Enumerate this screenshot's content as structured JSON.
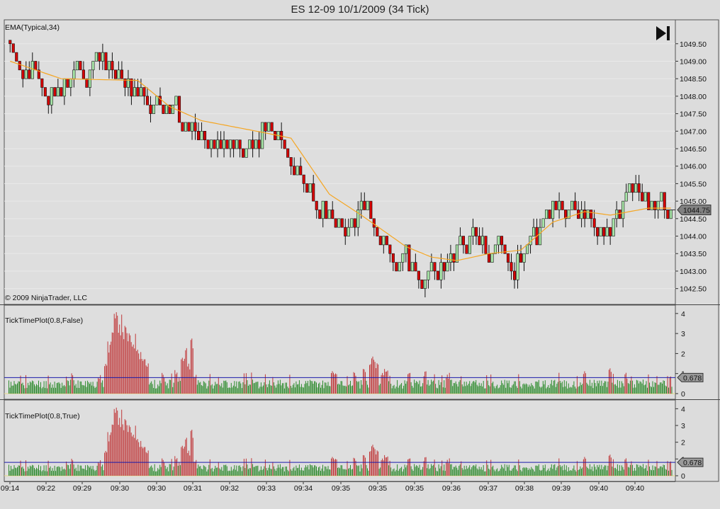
{
  "window": {
    "title": "ES 12-09  10/1/2009 (34 Tick)"
  },
  "colors": {
    "up": "#a8e6a8",
    "down": "#d80000",
    "ema": "#f5a623",
    "hist_up": "#2e8b2e",
    "hist_down": "#c0393b",
    "ref_line": "#1a1aaa",
    "background": "#dcdcdc"
  },
  "icons": {
    "play_end": "skip-to-end-icon"
  },
  "chart_data": [
    {
      "type": "candlestick",
      "indicator_label": "EMA(Typical,34)",
      "copyright": "© 2009 NinjaTrader, LLC",
      "price_ticks": [
        "1049.50",
        "1049.00",
        "1048.50",
        "1048.00",
        "1047.50",
        "1047.00",
        "1046.50",
        "1046.00",
        "1045.50",
        "1045.00",
        "1044.50",
        "1044.00",
        "1043.50",
        "1043.00",
        "1042.50"
      ],
      "ylim": [
        1042.25,
        1049.9
      ],
      "last_price": "1044.75",
      "last_price_value": 1044.75,
      "close_path": [
        [
          0,
          1049.6
        ],
        [
          4,
          1048.8
        ],
        [
          8,
          1048.7
        ],
        [
          12,
          1048.1
        ],
        [
          16,
          1048.4
        ],
        [
          22,
          1048.6
        ],
        [
          28,
          1049.0
        ],
        [
          34,
          1048.7
        ],
        [
          38,
          1048.3
        ],
        [
          42,
          1047.9
        ],
        [
          46,
          1048.0
        ],
        [
          50,
          1047.6
        ],
        [
          54,
          1047.3
        ],
        [
          58,
          1047.0
        ],
        [
          62,
          1046.75
        ],
        [
          66,
          1046.6
        ],
        [
          70,
          1046.9
        ],
        [
          74,
          1046.6
        ],
        [
          78,
          1046.8
        ],
        [
          82,
          1047.4
        ],
        [
          86,
          1046.6
        ],
        [
          90,
          1045.9
        ],
        [
          94,
          1045.3
        ],
        [
          98,
          1044.8
        ],
        [
          104,
          1044.4
        ],
        [
          108,
          1044.5
        ],
        [
          110,
          1045.1
        ],
        [
          114,
          1044.3
        ],
        [
          118,
          1043.8
        ],
        [
          122,
          1043.5
        ],
        [
          126,
          1043.0
        ],
        [
          128,
          1042.6
        ],
        [
          132,
          1043.2
        ],
        [
          136,
          1043.3
        ],
        [
          140,
          1043.6
        ],
        [
          144,
          1044.0
        ],
        [
          146,
          1044.2
        ],
        [
          150,
          1043.5
        ],
        [
          154,
          1043.6
        ],
        [
          158,
          1043.2
        ],
        [
          162,
          1043.6
        ],
        [
          166,
          1044.1
        ],
        [
          170,
          1044.8
        ],
        [
          174,
          1044.9
        ],
        [
          178,
          1044.6
        ],
        [
          182,
          1044.5
        ],
        [
          186,
          1043.9
        ],
        [
          190,
          1044.6
        ],
        [
          194,
          1045.2
        ],
        [
          196,
          1045.4
        ],
        [
          200,
          1044.9
        ],
        [
          204,
          1044.8
        ],
        [
          207,
          1044.6
        ]
      ],
      "ema_path": [
        [
          0,
          1049.0
        ],
        [
          16,
          1048.5
        ],
        [
          40,
          1048.45
        ],
        [
          50,
          1047.7
        ],
        [
          60,
          1047.3
        ],
        [
          80,
          1046.95
        ],
        [
          88,
          1046.8
        ],
        [
          100,
          1045.2
        ],
        [
          110,
          1044.6
        ],
        [
          124,
          1043.7
        ],
        [
          132,
          1043.4
        ],
        [
          140,
          1043.3
        ],
        [
          150,
          1043.5
        ],
        [
          160,
          1043.6
        ],
        [
          170,
          1044.4
        ],
        [
          180,
          1044.7
        ],
        [
          188,
          1044.6
        ],
        [
          200,
          1044.8
        ],
        [
          207,
          1044.8
        ]
      ]
    },
    {
      "type": "bar",
      "indicator_label": "TickTimePlot(0.8,False)",
      "y_ticks": [
        "4",
        "3",
        "2",
        "1",
        "0"
      ],
      "ylim": [
        0,
        4.1
      ],
      "ref_value": 0.8,
      "ref_label": "0.678",
      "spikes": [
        [
          28,
          0.9
        ],
        [
          30,
          1.8
        ],
        [
          31,
          2.5
        ],
        [
          32,
          3.3
        ],
        [
          33,
          3.9
        ],
        [
          34,
          4.0
        ],
        [
          35,
          3.8
        ],
        [
          36,
          3.3
        ],
        [
          37,
          3.1
        ],
        [
          38,
          2.8
        ],
        [
          39,
          2.9
        ],
        [
          40,
          2.6
        ],
        [
          41,
          2.2
        ],
        [
          42,
          1.9
        ],
        [
          43,
          1.6
        ],
        [
          48,
          1.0
        ],
        [
          52,
          1.2
        ],
        [
          54,
          1.9
        ],
        [
          55,
          2.2
        ],
        [
          56,
          1.6
        ],
        [
          57,
          3.0
        ],
        [
          58,
          1.1
        ],
        [
          101,
          1.1
        ],
        [
          102,
          1.2
        ],
        [
          108,
          1.1
        ],
        [
          111,
          1.3
        ],
        [
          113,
          1.7
        ],
        [
          114,
          1.9
        ],
        [
          115,
          1.6
        ],
        [
          117,
          1.2
        ],
        [
          118,
          1.1
        ],
        [
          125,
          1.2
        ],
        [
          130,
          1.1
        ],
        [
          137,
          1.0
        ],
        [
          180,
          1.2
        ],
        [
          188,
          1.3
        ],
        [
          193,
          1.0
        ]
      ]
    },
    {
      "type": "bar",
      "indicator_label": "TickTimePlot(0.8,True)",
      "y_ticks": [
        "4",
        "3",
        "2",
        "1",
        "0"
      ],
      "ylim": [
        0,
        4.1
      ],
      "ref_value": 0.8,
      "ref_label": "0.678",
      "spikes": [
        [
          28,
          0.9
        ],
        [
          30,
          1.8
        ],
        [
          31,
          2.5
        ],
        [
          32,
          3.3
        ],
        [
          33,
          3.9
        ],
        [
          34,
          4.0
        ],
        [
          35,
          3.8
        ],
        [
          36,
          3.3
        ],
        [
          37,
          3.1
        ],
        [
          38,
          2.8
        ],
        [
          39,
          2.9
        ],
        [
          40,
          2.6
        ],
        [
          41,
          2.2
        ],
        [
          42,
          1.9
        ],
        [
          43,
          1.6
        ],
        [
          48,
          1.0
        ],
        [
          52,
          1.2
        ],
        [
          54,
          1.9
        ],
        [
          55,
          2.2
        ],
        [
          56,
          1.6
        ],
        [
          57,
          3.0
        ],
        [
          58,
          1.1
        ],
        [
          101,
          1.1
        ],
        [
          102,
          1.2
        ],
        [
          108,
          1.1
        ],
        [
          111,
          1.3
        ],
        [
          113,
          1.7
        ],
        [
          114,
          1.9
        ],
        [
          115,
          1.6
        ],
        [
          117,
          1.2
        ],
        [
          118,
          1.1
        ],
        [
          125,
          1.2
        ],
        [
          130,
          1.1
        ],
        [
          137,
          1.0
        ],
        [
          180,
          1.2
        ],
        [
          188,
          1.3
        ],
        [
          193,
          1.0
        ]
      ]
    }
  ],
  "time_axis": {
    "labels": [
      "09:14",
      "09:22",
      "09:29",
      "09:30",
      "09:30",
      "09:31",
      "09:32",
      "09:33",
      "09:34",
      "09:35",
      "09:35",
      "09:35",
      "09:36",
      "09:37",
      "09:38",
      "09:39",
      "09:40",
      "09:40"
    ],
    "bar_count": 208
  }
}
